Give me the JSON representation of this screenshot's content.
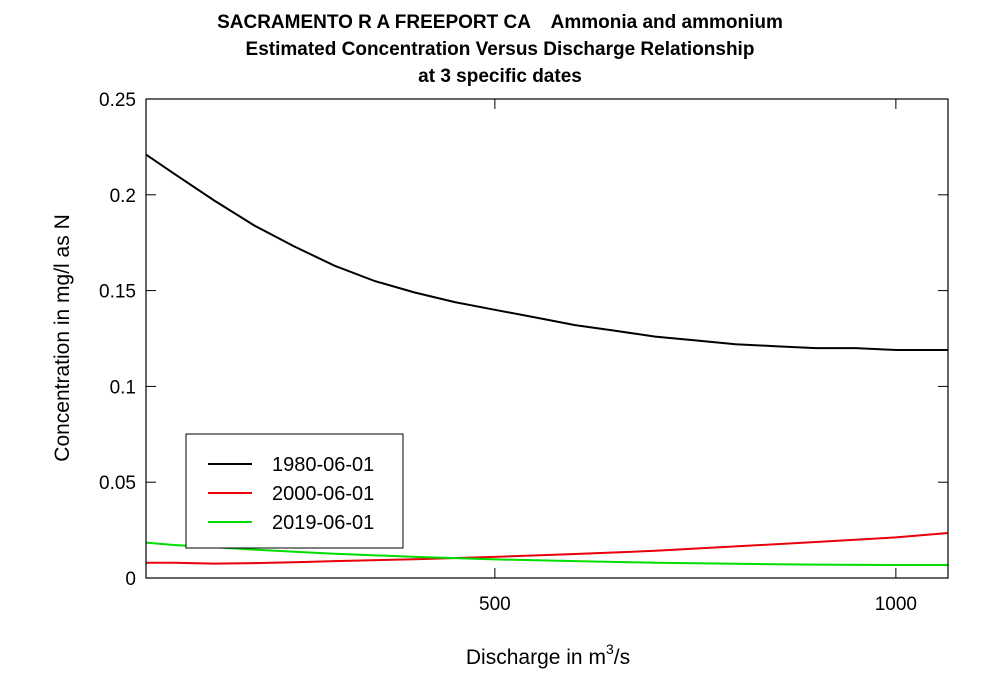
{
  "chart_data": {
    "type": "line",
    "title_line1": "SACRAMENTO R A FREEPORT CA    Ammonia and ammonium",
    "title_line2": "Estimated Concentration Versus Discharge Relationship",
    "title_line3": "at 3 specific dates",
    "xlabel_main": "Discharge in m",
    "xlabel_sup": "3",
    "xlabel_tail": "/s",
    "ylabel": "Concentration in mg/l as N",
    "xlim": [
      65,
      1065
    ],
    "ylim": [
      0,
      0.25
    ],
    "x_ticks": [
      500,
      1000
    ],
    "x_tick_labels": [
      "500",
      "1000"
    ],
    "y_ticks": [
      0,
      0.05,
      0.1,
      0.15,
      0.2,
      0.25
    ],
    "y_tick_labels": [
      "0",
      "0.05",
      "0.1",
      "0.15",
      "0.2",
      "0.25"
    ],
    "legend_position": "bottom-left",
    "series": [
      {
        "name": "1980-06-01",
        "color": "#000000",
        "x": [
          65,
          100,
          150,
          200,
          250,
          300,
          350,
          400,
          450,
          500,
          550,
          600,
          650,
          700,
          750,
          800,
          850,
          900,
          950,
          1000,
          1065
        ],
        "y": [
          0.221,
          0.211,
          0.197,
          0.184,
          0.173,
          0.163,
          0.155,
          0.149,
          0.144,
          0.14,
          0.136,
          0.132,
          0.129,
          0.126,
          0.124,
          0.122,
          0.121,
          0.12,
          0.12,
          0.119,
          0.119
        ]
      },
      {
        "name": "2000-06-01",
        "color": "#e8000b",
        "x": [
          65,
          100,
          150,
          200,
          250,
          300,
          400,
          500,
          600,
          700,
          800,
          900,
          1000,
          1065
        ],
        "y": [
          0.008,
          0.008,
          0.0075,
          0.0078,
          0.0082,
          0.0088,
          0.0098,
          0.011,
          0.0125,
          0.0142,
          0.0165,
          0.0188,
          0.0212,
          0.0235
        ]
      },
      {
        "name": "2019-06-01",
        "color": "#00dd00",
        "x": [
          65,
          100,
          150,
          200,
          250,
          300,
          400,
          500,
          600,
          700,
          800,
          900,
          1000,
          1065
        ],
        "y": [
          0.0185,
          0.0172,
          0.016,
          0.0148,
          0.0137,
          0.0127,
          0.011,
          0.0097,
          0.0088,
          0.008,
          0.0074,
          0.007,
          0.0068,
          0.0068
        ]
      }
    ]
  }
}
